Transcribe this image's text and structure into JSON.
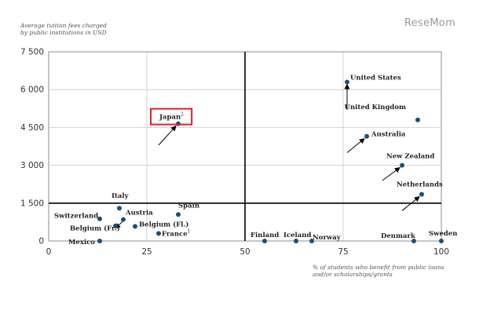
{
  "watermark": "ReseMom",
  "chart_data": {
    "type": "scatter",
    "title": "",
    "ylabel": "Average tuition fees charged by public institutions in USD",
    "ylabel_lines": [
      "Average tuition fees charged",
      "by public institutions in USD"
    ],
    "xlabel": "% of students who benefit from public loans and/or scholarships/grants",
    "xlabel_lines": [
      "% of students who benefit from public loans",
      "and/or scholarships/grants"
    ],
    "xlim": [
      0,
      100
    ],
    "ylim": [
      0,
      7500
    ],
    "xticks": [
      "0",
      "25",
      "50",
      "75",
      "100"
    ],
    "xtick_values": [
      0,
      25,
      50,
      75,
      100
    ],
    "yticks": [
      "0",
      "1 500",
      "3 000",
      "4 500",
      "6 000",
      "7 500"
    ],
    "ytick_values": [
      0,
      1500,
      3000,
      4500,
      6000,
      7500
    ],
    "grid": true,
    "reference_lines": {
      "x": 50,
      "y": 1500
    },
    "highlight": "Japan",
    "colors": {
      "point": "#1f4e79",
      "highlight_box": "#e02020",
      "reference_line": "#000000",
      "grid": "#c8c8c8"
    },
    "points": [
      {
        "label": "United States",
        "superscript": "",
        "x": 76,
        "y": 6300,
        "arrow_from": [
          76,
          5200
        ]
      },
      {
        "label": "United Kingdom",
        "superscript": "",
        "x": 94,
        "y": 4800,
        "arrow_from": null
      },
      {
        "label": "Japan",
        "superscript": "2",
        "x": 33,
        "y": 4650,
        "arrow_from": [
          28,
          3800
        ]
      },
      {
        "label": "Australia",
        "superscript": "",
        "x": 81,
        "y": 4150,
        "arrow_from": [
          76,
          3500
        ]
      },
      {
        "label": "New Zealand",
        "superscript": "",
        "x": 90,
        "y": 3000,
        "arrow_from": [
          85,
          2400
        ]
      },
      {
        "label": "Netherlands",
        "superscript": "",
        "x": 95,
        "y": 1850,
        "arrow_from": [
          90,
          1200
        ]
      },
      {
        "label": "Italy",
        "superscript": "",
        "x": 18,
        "y": 1300,
        "arrow_from": null
      },
      {
        "label": "Spain",
        "superscript": "",
        "x": 33,
        "y": 1050,
        "arrow_from": null
      },
      {
        "label": "Switzerland",
        "superscript": "",
        "x": 13,
        "y": 880,
        "arrow_from": null
      },
      {
        "label": "Austria",
        "superscript": "",
        "x": 19,
        "y": 850,
        "arrow_from": null
      },
      {
        "label": "Belgium (Fr.)",
        "superscript": "",
        "x": 17,
        "y": 600,
        "arrow_from": [
          19,
          800
        ]
      },
      {
        "label": "Belgium (Fl.)",
        "superscript": "",
        "x": 22,
        "y": 580,
        "arrow_from": null
      },
      {
        "label": "France",
        "superscript": "1",
        "x": 28,
        "y": 300,
        "arrow_from": null
      },
      {
        "label": "Mexico",
        "superscript": "",
        "x": 13,
        "y": 0,
        "arrow_from": null
      },
      {
        "label": "Finland",
        "superscript": "",
        "x": 55,
        "y": 0,
        "arrow_from": null
      },
      {
        "label": "Iceland",
        "superscript": "",
        "x": 63,
        "y": 0,
        "arrow_from": null
      },
      {
        "label": "Norway",
        "superscript": "",
        "x": 67,
        "y": 0,
        "arrow_from": null
      },
      {
        "label": "Denmark",
        "superscript": "",
        "x": 93,
        "y": 0,
        "arrow_from": null
      },
      {
        "label": "Sweden",
        "superscript": "",
        "x": 100,
        "y": 0,
        "arrow_from": null
      }
    ]
  }
}
